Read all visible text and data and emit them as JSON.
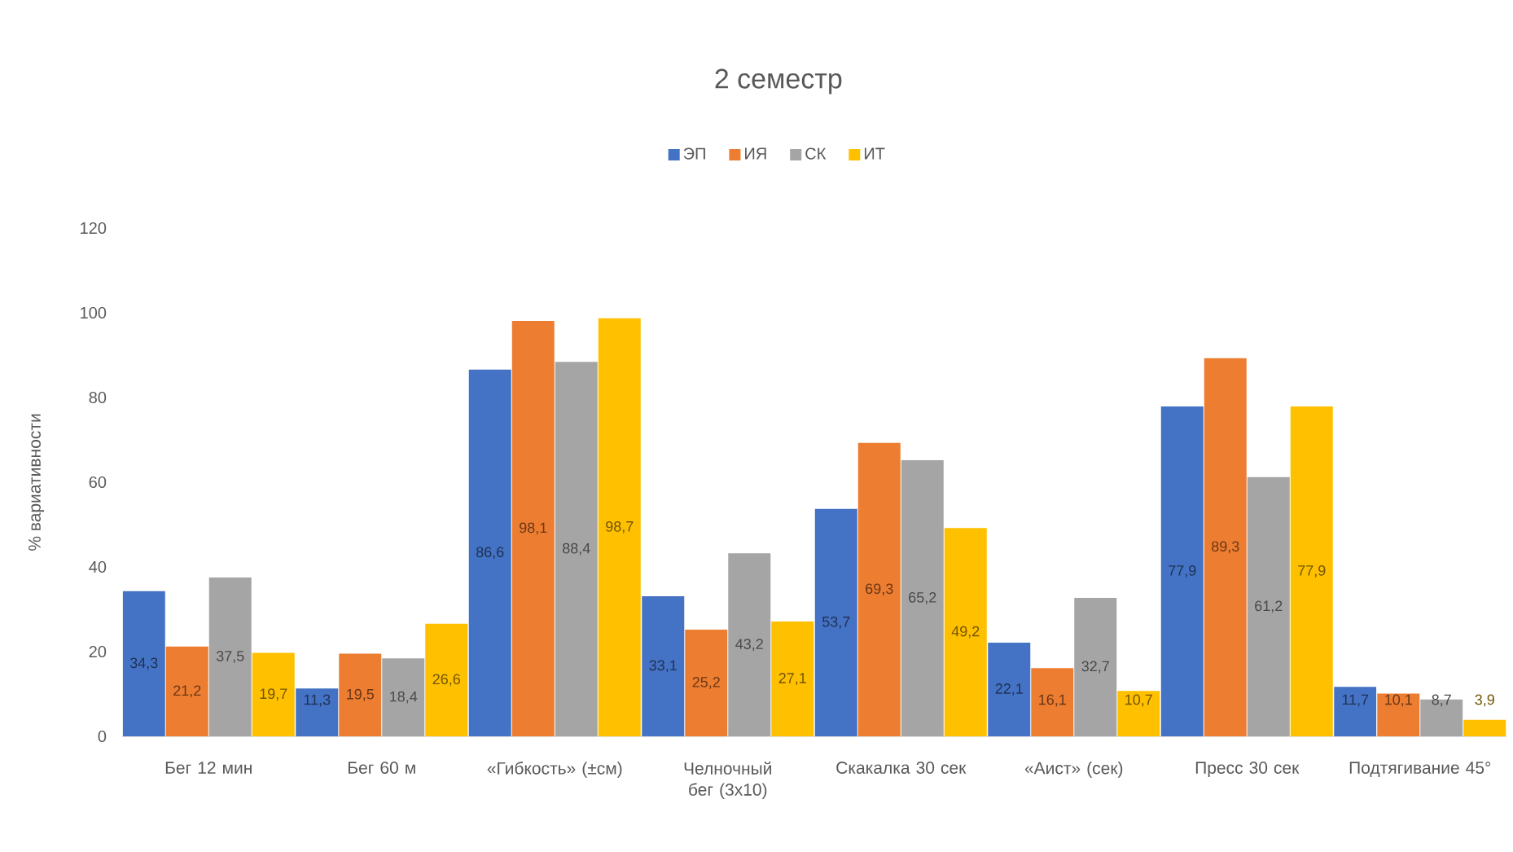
{
  "chart_data": {
    "type": "bar",
    "title": "2 семестр",
    "ylabel": "% вариативности",
    "categories": [
      "Бег 12 мин",
      "Бег 60 м",
      "«Гибкость» (±см)",
      "Челночный бег (3х10)",
      "Скакалка 30 сек",
      "«Аист» (сек)",
      "Пресс 30 сек",
      "Подтягивание 45°"
    ],
    "series": [
      {
        "name": "ЭП",
        "color": "#4472c4",
        "values": [
          34.3,
          11.3,
          86.6,
          33.1,
          53.7,
          22.1,
          77.9,
          11.7
        ],
        "value_labels": [
          "34,3",
          "11,3",
          "86,6",
          "33,1",
          "53,7",
          "22,1",
          "77,9",
          "11,7"
        ]
      },
      {
        "name": "ИЯ",
        "color": "#ed7d31",
        "values": [
          21.2,
          19.5,
          98.1,
          25.2,
          69.3,
          16.1,
          89.3,
          10.1
        ],
        "value_labels": [
          "21,2",
          "19,5",
          "98,1",
          "25,2",
          "69,3",
          "16,1",
          "89,3",
          "10,1"
        ]
      },
      {
        "name": "СК",
        "color": "#a5a5a5",
        "values": [
          37.5,
          18.4,
          88.4,
          43.2,
          65.2,
          32.7,
          61.2,
          8.7
        ],
        "value_labels": [
          "37,5",
          "18,4",
          "88,4",
          "43,2",
          "65,2",
          "32,7",
          "61,2",
          "8,7"
        ]
      },
      {
        "name": "ИТ",
        "color": "#ffc000",
        "values": [
          19.7,
          26.6,
          98.7,
          27.1,
          49.2,
          10.7,
          77.9,
          3.9
        ],
        "value_labels": [
          "19,7",
          "26,6",
          "98,7",
          "27,1",
          "49,2",
          "10,7",
          "77,9",
          "3,9"
        ]
      }
    ],
    "ylim": [
      0,
      120
    ],
    "yticks": [
      0,
      20,
      40,
      60,
      80,
      100,
      120
    ],
    "legend": "top"
  }
}
